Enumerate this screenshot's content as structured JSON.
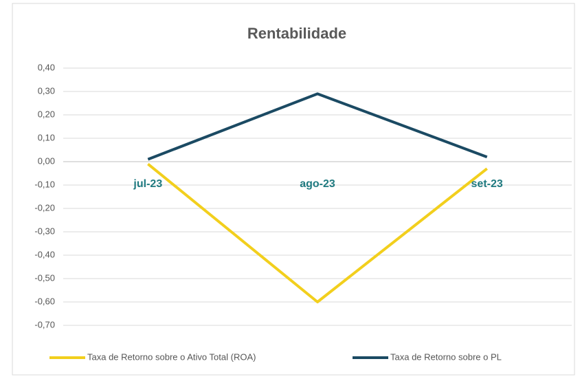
{
  "chart_data": {
    "type": "line",
    "title": "Rentabilidade",
    "categories": [
      "jul-23",
      "ago-23",
      "set-23"
    ],
    "series": [
      {
        "name": "Taxa de Retorno sobre o Ativo Total (ROA)",
        "color": "#f2cf1d",
        "values": [
          -0.01,
          -0.6,
          -0.03
        ]
      },
      {
        "name": "Taxa de Retorno sobre o PL",
        "color": "#1b4a63",
        "values": [
          0.01,
          0.29,
          0.02
        ]
      }
    ],
    "ylim": [
      -0.7,
      0.4
    ],
    "yticks": [
      {
        "value": 0.4,
        "label": "0,40"
      },
      {
        "value": 0.3,
        "label": "0,30"
      },
      {
        "value": 0.2,
        "label": "0,20"
      },
      {
        "value": 0.1,
        "label": "0,10"
      },
      {
        "value": 0.0,
        "label": "0,00"
      },
      {
        "value": -0.1,
        "label": "-0,10"
      },
      {
        "value": -0.2,
        "label": "-0,20"
      },
      {
        "value": -0.3,
        "label": "-0,30"
      },
      {
        "value": -0.4,
        "label": "-0,40"
      },
      {
        "value": -0.5,
        "label": "-0,50"
      },
      {
        "value": -0.6,
        "label": "-0,60"
      },
      {
        "value": -0.7,
        "label": "-0,70"
      }
    ],
    "grid": true,
    "legend": "bottom"
  }
}
